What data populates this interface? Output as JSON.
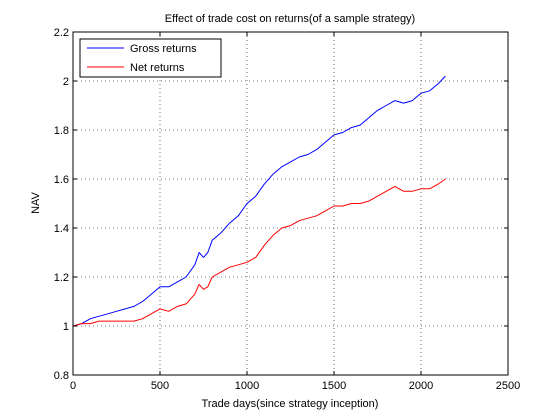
{
  "chart_data": {
    "type": "line",
    "title": "Effect of trade cost on returns(of a sample strategy)",
    "xlabel": "Trade days(since strategy inception)",
    "ylabel": "NAV",
    "xlim": [
      0,
      2500
    ],
    "ylim": [
      0.8,
      2.2
    ],
    "xticks": [
      0,
      500,
      1000,
      1500,
      2000,
      2500
    ],
    "yticks": [
      0.8,
      1,
      1.2,
      1.4,
      1.6,
      1.8,
      2,
      2.2
    ],
    "xtick_labels": [
      "0",
      "500",
      "1000",
      "1500",
      "2000",
      "2500"
    ],
    "ytick_labels": [
      "0.8",
      "1",
      "1.2",
      "1.4",
      "1.6",
      "1.8",
      "2",
      "2.2"
    ],
    "grid": true,
    "legend_position": "top-left",
    "series": [
      {
        "name": "Gross returns",
        "color": "#0000ff",
        "x": [
          0,
          50,
          100,
          150,
          200,
          250,
          300,
          350,
          400,
          450,
          500,
          550,
          600,
          650,
          700,
          725,
          750,
          775,
          800,
          850,
          900,
          950,
          1000,
          1050,
          1100,
          1150,
          1200,
          1250,
          1300,
          1350,
          1400,
          1450,
          1500,
          1550,
          1600,
          1650,
          1700,
          1750,
          1800,
          1850,
          1900,
          1950,
          2000,
          2050,
          2100,
          2140
        ],
        "y": [
          1.0,
          1.01,
          1.03,
          1.04,
          1.05,
          1.06,
          1.07,
          1.08,
          1.1,
          1.13,
          1.16,
          1.16,
          1.18,
          1.2,
          1.25,
          1.3,
          1.28,
          1.3,
          1.35,
          1.38,
          1.42,
          1.45,
          1.5,
          1.53,
          1.58,
          1.62,
          1.65,
          1.67,
          1.69,
          1.7,
          1.72,
          1.75,
          1.78,
          1.79,
          1.81,
          1.82,
          1.85,
          1.88,
          1.9,
          1.92,
          1.91,
          1.92,
          1.95,
          1.96,
          1.99,
          2.02
        ]
      },
      {
        "name": "Net returns",
        "color": "#ff0000",
        "x": [
          0,
          50,
          100,
          150,
          200,
          250,
          300,
          350,
          400,
          450,
          500,
          550,
          600,
          650,
          700,
          725,
          750,
          775,
          800,
          850,
          900,
          950,
          1000,
          1050,
          1100,
          1150,
          1200,
          1250,
          1300,
          1350,
          1400,
          1450,
          1500,
          1550,
          1600,
          1650,
          1700,
          1750,
          1800,
          1850,
          1900,
          1950,
          2000,
          2050,
          2100,
          2140
        ],
        "y": [
          1.0,
          1.01,
          1.01,
          1.02,
          1.02,
          1.02,
          1.02,
          1.02,
          1.03,
          1.05,
          1.07,
          1.06,
          1.08,
          1.09,
          1.13,
          1.17,
          1.15,
          1.16,
          1.2,
          1.22,
          1.24,
          1.25,
          1.26,
          1.28,
          1.33,
          1.37,
          1.4,
          1.41,
          1.43,
          1.44,
          1.45,
          1.47,
          1.49,
          1.49,
          1.5,
          1.5,
          1.51,
          1.53,
          1.55,
          1.57,
          1.55,
          1.55,
          1.56,
          1.56,
          1.58,
          1.6
        ]
      }
    ]
  }
}
